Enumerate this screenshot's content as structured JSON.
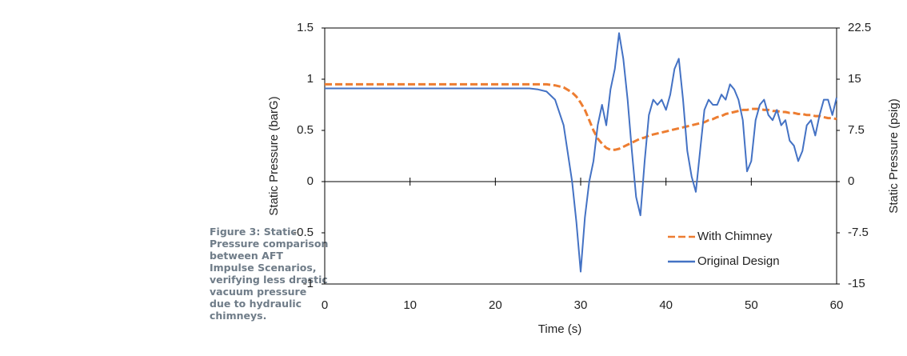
{
  "caption": "Figure 3: Static Pressure comparison between AFT Impulse Scenarios, verifying less drastic vacuum pressure due to hydraulic chimneys.",
  "chart_data": {
    "type": "line",
    "xlabel": "Time (s)",
    "ylabel": "Static Pressure (barG)",
    "y2label": "Static Pressure (psig)",
    "xlim": [
      0,
      60
    ],
    "xticks": [
      0,
      10,
      20,
      30,
      40,
      50,
      60
    ],
    "ylim": [
      -1,
      1.5
    ],
    "yticks": [
      -1,
      -0.5,
      0,
      0.5,
      1,
      1.5
    ],
    "y2lim": [
      -15,
      22.5
    ],
    "y2ticks": [
      -15,
      -7.5,
      0,
      7.5,
      15,
      22.5
    ],
    "legend": "lower right",
    "x": [
      0,
      10,
      20,
      24,
      25,
      26,
      27,
      28,
      29,
      29.5,
      30,
      30.5,
      31,
      31.5,
      32,
      32.5,
      33,
      33.5,
      34,
      34.5,
      35,
      35.5,
      36,
      36.5,
      37,
      37.5,
      38,
      38.5,
      39,
      39.5,
      40,
      40.5,
      41,
      41.5,
      42,
      42.5,
      43,
      43.5,
      44,
      44.5,
      45,
      45.5,
      46,
      46.5,
      47,
      47.5,
      48,
      48.5,
      49,
      49.5,
      50,
      50.5,
      51,
      51.5,
      52,
      52.5,
      53,
      53.5,
      54,
      54.5,
      55,
      55.5,
      56,
      56.5,
      57,
      57.5,
      58,
      58.5,
      59,
      59.5,
      60
    ],
    "series": [
      {
        "name": "With Chimney",
        "color": "#ed7d31",
        "dashed": true,
        "values": [
          0.95,
          0.95,
          0.95,
          0.95,
          0.95,
          0.95,
          0.94,
          0.92,
          0.87,
          0.83,
          0.77,
          0.7,
          0.6,
          0.5,
          0.42,
          0.37,
          0.33,
          0.31,
          0.31,
          0.32,
          0.34,
          0.36,
          0.38,
          0.4,
          0.42,
          0.43,
          0.45,
          0.46,
          0.47,
          0.48,
          0.49,
          0.5,
          0.51,
          0.52,
          0.53,
          0.54,
          0.55,
          0.56,
          0.57,
          0.58,
          0.6,
          0.61,
          0.63,
          0.64,
          0.66,
          0.67,
          0.68,
          0.69,
          0.7,
          0.7,
          0.71,
          0.71,
          0.71,
          0.7,
          0.7,
          0.69,
          0.69,
          0.68,
          0.68,
          0.67,
          0.67,
          0.66,
          0.66,
          0.65,
          0.65,
          0.64,
          0.64,
          0.63,
          0.62,
          0.62,
          0.61
        ]
      },
      {
        "name": "Original Design",
        "color": "#4472c4",
        "dashed": false,
        "values": [
          0.91,
          0.91,
          0.91,
          0.91,
          0.9,
          0.88,
          0.8,
          0.55,
          0.0,
          -0.4,
          -0.88,
          -0.35,
          0.0,
          0.2,
          0.55,
          0.75,
          0.55,
          0.9,
          1.1,
          1.45,
          1.2,
          0.8,
          0.3,
          -0.15,
          -0.33,
          0.2,
          0.65,
          0.8,
          0.75,
          0.8,
          0.7,
          0.85,
          1.1,
          1.2,
          0.8,
          0.3,
          0.05,
          -0.1,
          0.3,
          0.7,
          0.8,
          0.75,
          0.75,
          0.85,
          0.8,
          0.95,
          0.9,
          0.8,
          0.6,
          0.1,
          0.2,
          0.6,
          0.75,
          0.8,
          0.65,
          0.6,
          0.7,
          0.55,
          0.6,
          0.4,
          0.35,
          0.2,
          0.3,
          0.55,
          0.6,
          0.45,
          0.65,
          0.8,
          0.8,
          0.65,
          0.82
        ]
      }
    ]
  }
}
